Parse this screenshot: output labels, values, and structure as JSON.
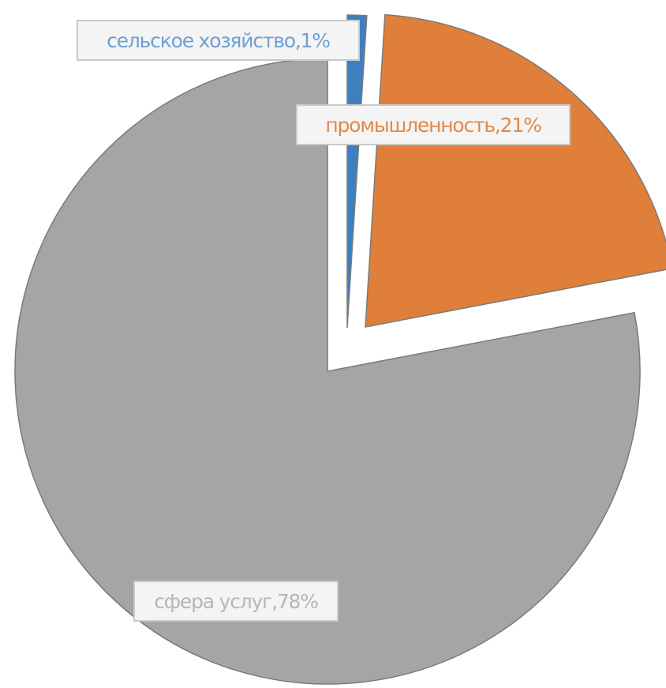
{
  "chart_data": {
    "type": "pie",
    "exploded": true,
    "start_angle_deg": 0,
    "direction": "clockwise",
    "slices": [
      {
        "label": "сельское хозяйство",
        "value": 1,
        "display": "сельское хозяйство,1%",
        "color": "#3f7fc0",
        "label_color": "#6e9fd3"
      },
      {
        "label": "промышленность",
        "value": 21,
        "display": "промышленность,21%",
        "color": "#e07f3a",
        "label_color": "#e08a4a"
      },
      {
        "label": "сфера услуг",
        "value": 78,
        "display": "сфера услуг,78%",
        "color": "#a5a5a5",
        "label_color": "#b6b6b6"
      }
    ]
  }
}
